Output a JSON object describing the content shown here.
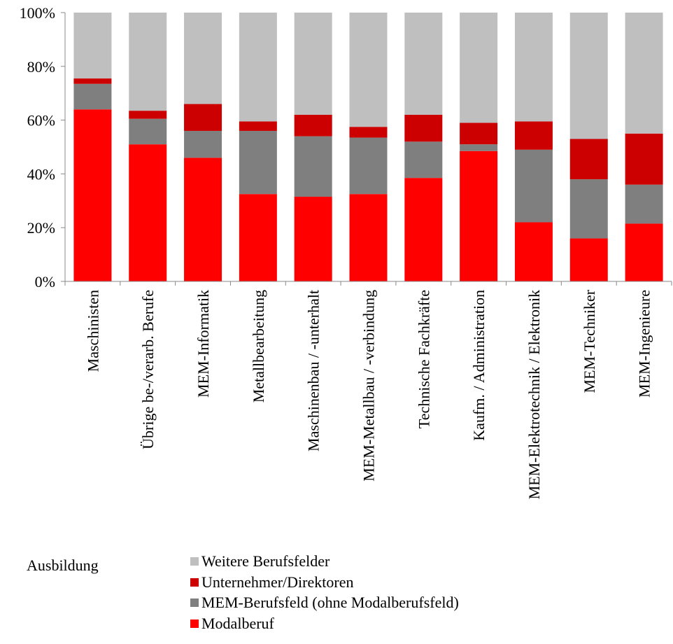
{
  "chart_data": {
    "type": "bar",
    "stacked": true,
    "normalized": true,
    "title": "",
    "xlabel": "",
    "ylabel": "",
    "ylim": [
      0,
      100
    ],
    "y_ticks": [
      "0%",
      "20%",
      "40%",
      "60%",
      "80%",
      "100%"
    ],
    "grid": false,
    "legend_title": "Ausbildung",
    "legend_position": "bottom",
    "categories": [
      "Maschinisten",
      "Übrige be-/verarb. Berufe",
      "MEM-Informatik",
      "Metallbearbeitung",
      "Maschinenbau / -unterhalt",
      "MEM-Metallbau / -verbindung",
      "Technische Fachkräfte",
      "Kaufm. / Administration",
      "MEM-Elektrotechnik / Elektronik",
      "MEM-Techniker",
      "MEM-Ingenieure"
    ],
    "series": [
      {
        "name": "Modalberuf",
        "color": "#ff0000",
        "values": [
          64,
          51,
          46,
          32.5,
          31.5,
          32.5,
          38.5,
          48.5,
          22,
          16,
          21.5
        ]
      },
      {
        "name": "MEM-Berufsfeld (ohne Modalberufsfeld)",
        "color": "#7f7f7f",
        "values": [
          9.5,
          9.5,
          10,
          23.5,
          22.5,
          21,
          13.5,
          2.5,
          27,
          22,
          14.5
        ]
      },
      {
        "name": "Unternehmer/Direktoren",
        "color": "#cc0000",
        "values": [
          2,
          3,
          10,
          3.5,
          8,
          4,
          10,
          8,
          10.5,
          15,
          19
        ]
      },
      {
        "name": "Weitere Berufsfelder",
        "color": "#bfbfbf",
        "values": [
          24.5,
          36.5,
          34,
          40.5,
          38,
          42.5,
          38,
          41,
          40.5,
          47,
          45
        ]
      }
    ],
    "legend_order": [
      "Weitere Berufsfelder",
      "Unternehmer/Direktoren",
      "MEM-Berufsfeld (ohne Modalberufsfeld)",
      "Modalberuf"
    ]
  }
}
